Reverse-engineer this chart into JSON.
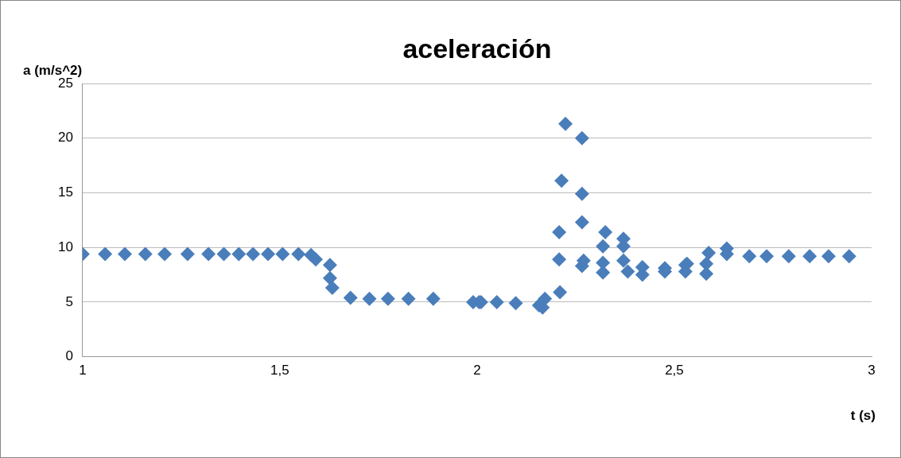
{
  "chart_data": {
    "type": "scatter",
    "title": "aceleración",
    "xlabel": "t (s)",
    "ylabel": "a (m/s^2)",
    "xlim": [
      1,
      3
    ],
    "xticks": [
      1,
      {
        "value": 1.5,
        "label": "1,5"
      },
      2,
      {
        "value": 2.5,
        "label": "2,5"
      },
      3
    ],
    "ylim": [
      0,
      25
    ],
    "yticks": [
      0,
      5,
      10,
      15,
      20,
      25
    ],
    "grid": "y",
    "legend": false,
    "marker": "diamond",
    "series": [
      {
        "color": "#4a7ebb",
        "x": [
          1.0,
          1.057,
          1.107,
          1.159,
          1.208,
          1.266,
          1.319,
          1.358,
          1.396,
          1.432,
          1.47,
          1.507,
          1.547,
          1.579,
          1.591,
          1.627,
          1.627,
          1.633,
          1.679,
          1.727,
          1.774,
          1.826,
          1.889,
          1.99,
          2.005,
          2.01,
          2.05,
          2.098,
          2.157,
          2.166,
          2.172,
          2.21,
          2.208,
          2.208,
          2.214,
          2.224,
          2.266,
          2.266,
          2.266,
          2.27,
          2.266,
          2.319,
          2.319,
          2.319,
          2.325,
          2.371,
          2.371,
          2.371,
          2.382,
          2.419,
          2.419,
          2.476,
          2.476,
          2.528,
          2.528,
          2.532,
          2.581,
          2.581,
          2.587,
          2.633,
          2.633,
          2.69,
          2.734,
          2.79,
          2.843,
          2.891,
          2.943
        ],
        "values": [
          9.4,
          9.4,
          9.4,
          9.4,
          9.4,
          9.4,
          9.4,
          9.4,
          9.4,
          9.4,
          9.4,
          9.4,
          9.4,
          9.3,
          8.9,
          8.4,
          7.2,
          6.3,
          5.4,
          5.3,
          5.3,
          5.3,
          5.3,
          5.0,
          5.0,
          5.0,
          5.0,
          4.9,
          4.7,
          4.5,
          5.3,
          5.9,
          8.9,
          11.4,
          16.1,
          21.3,
          20.0,
          14.9,
          12.3,
          8.8,
          8.3,
          10.1,
          8.6,
          7.7,
          11.4,
          10.8,
          10.1,
          8.8,
          7.8,
          8.2,
          7.5,
          8.1,
          7.8,
          8.4,
          7.8,
          8.5,
          7.6,
          8.5,
          9.5,
          9.9,
          9.4,
          9.2,
          9.2,
          9.2,
          9.2,
          9.2,
          9.2
        ]
      }
    ]
  }
}
